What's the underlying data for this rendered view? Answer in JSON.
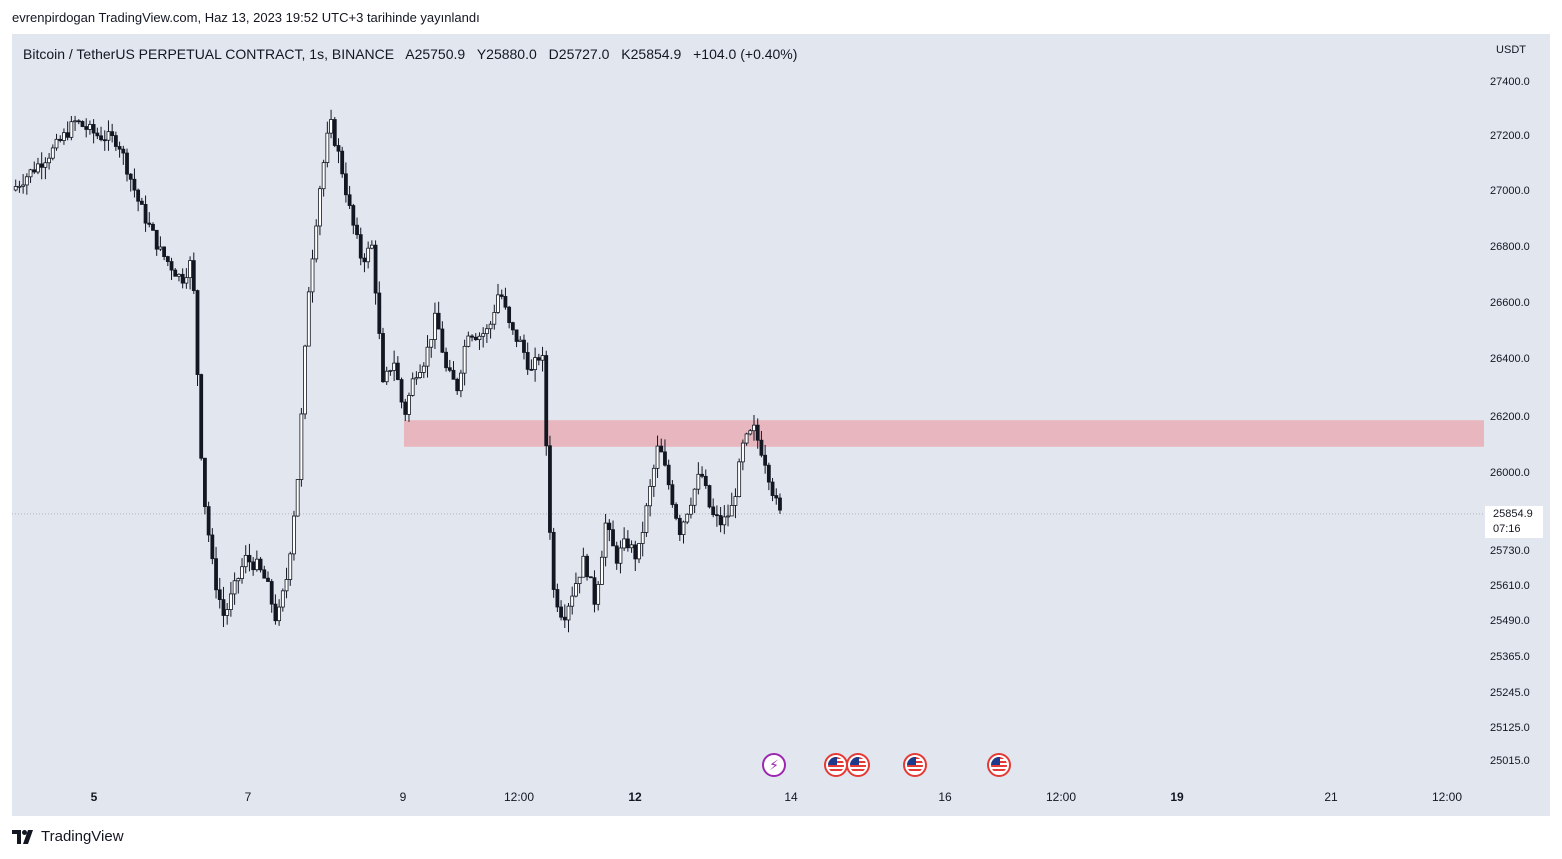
{
  "caption": "evrenpirdogan TradingView.com, Haz 13, 2023 19:52 UTC+3 tarihinde yayınlandı",
  "legend": {
    "symbol": "Bitcoin / TetherUS PERPETUAL CONTRACT, 1s, BINANCE",
    "open": "A25750.9",
    "high": "Y25880.0",
    "low": "D25727.0",
    "close": "K25854.9",
    "change": "+104.0 (+0.40%)"
  },
  "currency": "USDT",
  "last_price": {
    "value": "25854.9",
    "countdown": "07:16"
  },
  "footer": {
    "brand": "TradingView"
  },
  "colors": {
    "background": "#e2e6ef",
    "candle": "#131722",
    "zone": "#e8b6bf",
    "axis_text": "#131722"
  },
  "events": [
    {
      "icon": "flash-icon"
    },
    {
      "icon": "us-flag-icon"
    },
    {
      "icon": "us-flag-icon"
    },
    {
      "icon": "us-flag-icon"
    },
    {
      "icon": "us-flag-icon"
    }
  ],
  "chart_data": {
    "type": "candlestick",
    "title": "Bitcoin / TetherUS PERPETUAL CONTRACT, 1s, BINANCE",
    "y_ticks": [
      "27400.0",
      "27200.0",
      "27000.0",
      "26800.0",
      "26600.0",
      "26400.0",
      "26200.0",
      "26000.0",
      "25730.0",
      "25610.0",
      "25490.0",
      "25365.0",
      "25245.0",
      "25125.0",
      "25015.0"
    ],
    "x_ticks": [
      {
        "label": "5",
        "bold": true
      },
      {
        "label": "7",
        "bold": false
      },
      {
        "label": "9",
        "bold": false
      },
      {
        "label": "12:00",
        "bold": false
      },
      {
        "label": "12",
        "bold": true
      },
      {
        "label": "14",
        "bold": false
      },
      {
        "label": "16",
        "bold": false
      },
      {
        "label": "12:00",
        "bold": false
      },
      {
        "label": "19",
        "bold": true
      },
      {
        "label": "21",
        "bold": false
      },
      {
        "label": "12:00",
        "bold": false
      }
    ],
    "resistance_zone": {
      "low": 26090,
      "high": 26185
    },
    "last_price": 25854.9,
    "price_path": [
      [
        0,
        27000
      ],
      [
        4,
        27150
      ],
      [
        6,
        27250
      ],
      [
        8,
        27200
      ],
      [
        10,
        27180
      ],
      [
        12,
        26950
      ],
      [
        14,
        26780
      ],
      [
        16,
        26680
      ],
      [
        17,
        26750
      ],
      [
        18,
        25950
      ],
      [
        19,
        25650
      ],
      [
        20,
        25500
      ],
      [
        21,
        25600
      ],
      [
        22,
        25700
      ],
      [
        23,
        25680
      ],
      [
        24,
        25620
      ],
      [
        25,
        25480
      ],
      [
        26,
        25650
      ],
      [
        27,
        26000
      ],
      [
        28,
        26650
      ],
      [
        29,
        27000
      ],
      [
        30,
        27250
      ],
      [
        31,
        27100
      ],
      [
        32,
        26900
      ],
      [
        33,
        26750
      ],
      [
        34,
        26800
      ],
      [
        35,
        26300
      ],
      [
        36,
        26400
      ],
      [
        37,
        26200
      ],
      [
        38,
        26350
      ],
      [
        39,
        26400
      ],
      [
        40,
        26550
      ],
      [
        41,
        26350
      ],
      [
        42,
        26300
      ],
      [
        43,
        26500
      ],
      [
        44,
        26480
      ],
      [
        45,
        26500
      ],
      [
        46,
        26650
      ],
      [
        47,
        26500
      ],
      [
        48,
        26450
      ],
      [
        49,
        26350
      ],
      [
        50,
        26430
      ],
      [
        51,
        25600
      ],
      [
        52,
        25500
      ],
      [
        53,
        25600
      ],
      [
        54,
        25700
      ],
      [
        55,
        25550
      ],
      [
        56,
        25820
      ],
      [
        57,
        25700
      ],
      [
        58,
        25760
      ],
      [
        59,
        25700
      ],
      [
        60,
        25900
      ],
      [
        61,
        26100
      ],
      [
        62,
        25950
      ],
      [
        63,
        25800
      ],
      [
        64,
        25900
      ],
      [
        65,
        26000
      ],
      [
        66,
        25850
      ],
      [
        67,
        25820
      ],
      [
        68,
        25880
      ],
      [
        69,
        26100
      ],
      [
        70,
        26150
      ],
      [
        71,
        26050
      ],
      [
        72,
        25900
      ],
      [
        72.5,
        25850
      ]
    ]
  }
}
